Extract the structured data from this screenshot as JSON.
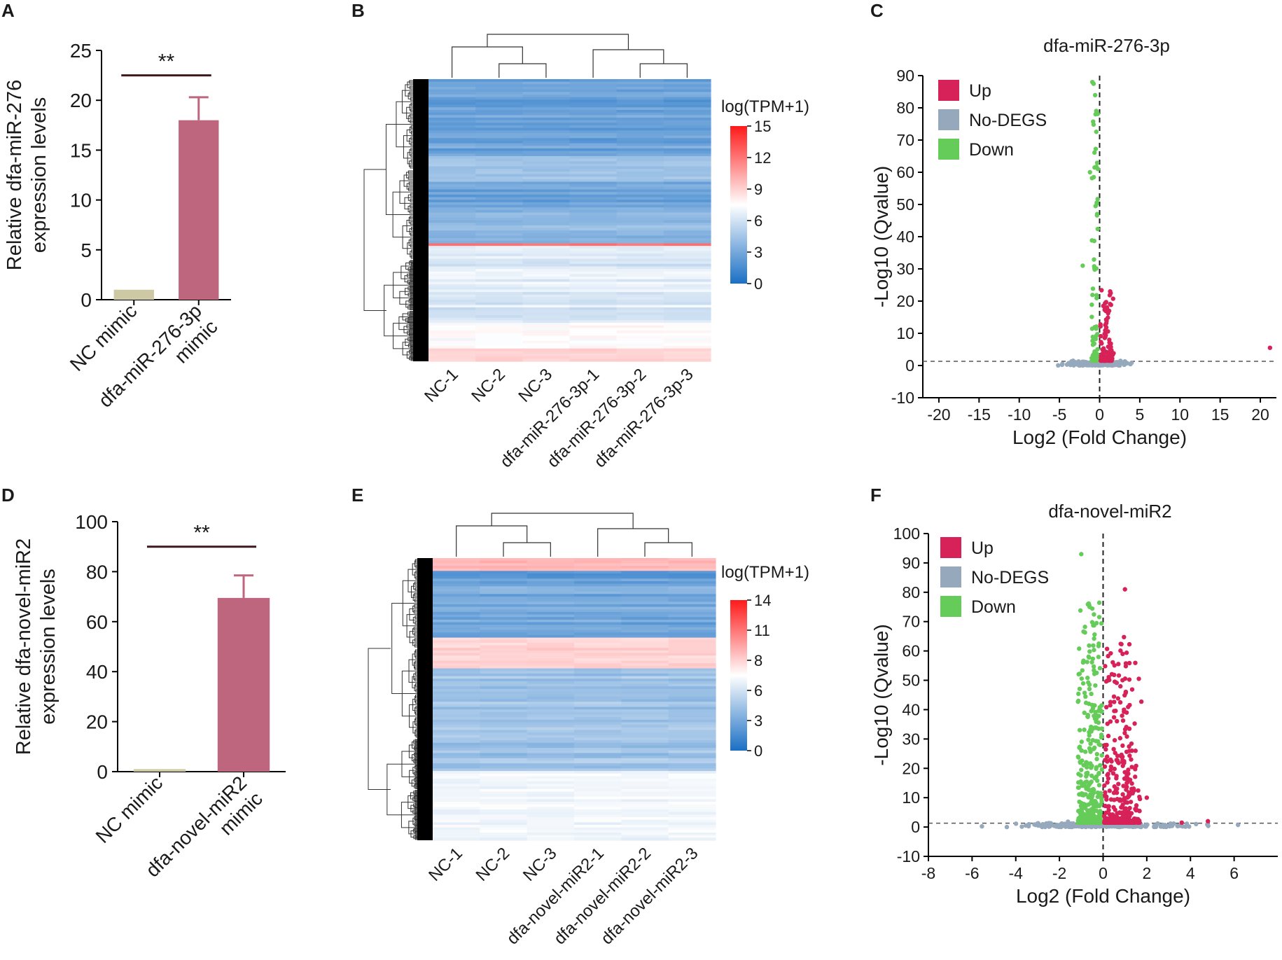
{
  "panels": {
    "A": {
      "letter": "A"
    },
    "B": {
      "letter": "B"
    },
    "C": {
      "letter": "C"
    },
    "D": {
      "letter": "D"
    },
    "E": {
      "letter": "E"
    },
    "F": {
      "letter": "F"
    }
  },
  "chart_data": [
    {
      "id": "A",
      "type": "bar",
      "categories": [
        "NC mimic",
        "dfa-miR-276-3p\nmimic"
      ],
      "values": [
        1.0,
        18.0
      ],
      "errors": [
        0.1,
        2.3
      ],
      "colors": [
        "#cdc9a5",
        "#be667e"
      ],
      "ylabel": "Relative dfa-miR-276\nexpression levels",
      "ylim": [
        0,
        25
      ],
      "yticks": [
        0,
        5,
        10,
        15,
        20,
        25
      ],
      "significance": "**"
    },
    {
      "id": "B",
      "type": "heatmap",
      "columns": [
        "NC-1",
        "NC-2",
        "NC-3",
        "dfa-miR-276-3p-1",
        "dfa-miR-276-3p-2",
        "dfa-miR-276-3p-3"
      ],
      "legend_title": "log(TPM+1)",
      "legend_ticks": [
        15,
        12,
        9,
        6,
        3,
        0
      ],
      "scale": [
        "#1a6fc4",
        "#ffffff",
        "#ff1a1a"
      ]
    },
    {
      "id": "C",
      "type": "scatter",
      "title": "dfa-miR-276-3p",
      "xlabel": "Log2 (Fold Change)",
      "ylabel": "-Log10 (Qvalue)",
      "xlim": [
        -22,
        22
      ],
      "ylim": [
        -10,
        90
      ],
      "xticks": [
        -20,
        -15,
        -10,
        -5,
        0,
        5,
        10,
        15,
        20
      ],
      "yticks": [
        -10,
        0,
        10,
        20,
        30,
        40,
        50,
        60,
        70,
        80,
        90
      ],
      "threshold_y": 1.3,
      "threshold_x": 0,
      "legend": [
        {
          "label": "Up",
          "color": "#d62258"
        },
        {
          "label": "No-DEGS",
          "color": "#96a8bb"
        },
        {
          "label": "Down",
          "color": "#66cc59"
        }
      ]
    },
    {
      "id": "D",
      "type": "bar",
      "categories": [
        "NC mimic",
        "dfa-novel-miR2\nmimic"
      ],
      "values": [
        1.0,
        69.5
      ],
      "errors": [
        0.3,
        9.0
      ],
      "colors": [
        "#cdc9a5",
        "#be667e"
      ],
      "ylabel": "Relative dfa-novel-miR2\nexpression levels",
      "ylim": [
        0,
        100
      ],
      "yticks": [
        0,
        20,
        40,
        60,
        80,
        100
      ],
      "significance": "**"
    },
    {
      "id": "E",
      "type": "heatmap",
      "columns": [
        "NC-1",
        "NC-2",
        "NC-3",
        "dfa-novel-miR2-1",
        "dfa-novel-miR2-2",
        "dfa-novel-miR2-3"
      ],
      "legend_title": "log(TPM+1)",
      "legend_ticks": [
        14,
        11,
        8,
        6,
        3,
        0
      ],
      "scale": [
        "#1a6fc4",
        "#ffffff",
        "#ff1a1a"
      ]
    },
    {
      "id": "F",
      "type": "scatter",
      "title": "dfa-novel-miR2",
      "xlabel": "Log2 (Fold Change)",
      "ylabel": "-Log10 (Qvalue)",
      "xlim": [
        -8,
        8
      ],
      "ylim": [
        -10,
        100
      ],
      "xticks": [
        -8,
        -6,
        -4,
        -2,
        0,
        2,
        4,
        6
      ],
      "yticks": [
        -10,
        0,
        10,
        20,
        30,
        40,
        50,
        60,
        70,
        80,
        90,
        100
      ],
      "threshold_y": 1.3,
      "threshold_x": 0,
      "legend": [
        {
          "label": "Up",
          "color": "#d62258"
        },
        {
          "label": "No-DEGS",
          "color": "#96a8bb"
        },
        {
          "label": "Down",
          "color": "#66cc59"
        }
      ]
    }
  ]
}
